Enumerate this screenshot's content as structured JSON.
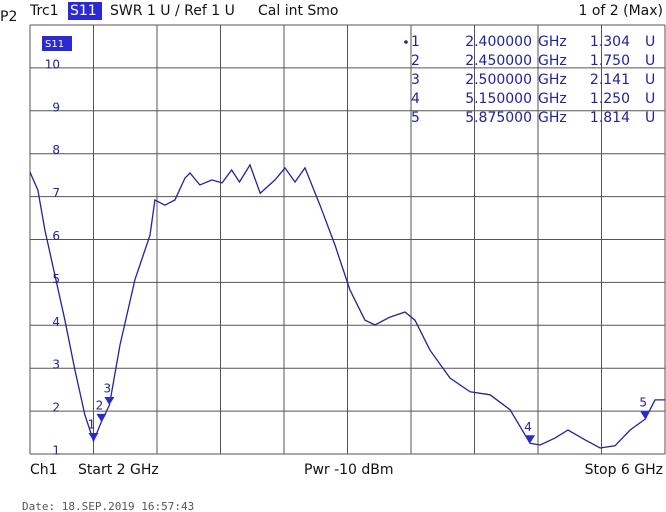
{
  "chart_data": {
    "type": "line",
    "header": {
      "port": "P2",
      "trace": "Trc1",
      "param": "S11",
      "format": "SWR  1 U /  Ref 1 U",
      "cal": "Cal int Smo",
      "page": "1 of 2 (Max)"
    },
    "footer": {
      "channel": "Ch1",
      "start": "Start  2 GHz",
      "power": "Pwr  -10 dBm",
      "stop": "Stop  6 GHz"
    },
    "date": "Date: 18.SEP.2019  16:57:43",
    "x": [
      2.0,
      2.05,
      2.094,
      2.157,
      2.22,
      2.283,
      2.346,
      2.4,
      2.45,
      2.5,
      2.567,
      2.661,
      2.756,
      2.787,
      2.85,
      2.913,
      2.976,
      3.008,
      3.07,
      3.146,
      3.21,
      3.27,
      3.32,
      3.386,
      3.45,
      3.543,
      3.606,
      3.669,
      3.732,
      3.827,
      3.921,
      4.016,
      4.11,
      4.173,
      4.268,
      4.362,
      4.425,
      4.52,
      4.646,
      4.772,
      4.898,
      5.024,
      5.15,
      5.213,
      5.307,
      5.389,
      5.496,
      5.591,
      5.685,
      5.78,
      5.875,
      5.937,
      6.0
    ],
    "series": [
      {
        "name": "S11",
        "color": "#23239a",
        "values": [
          7.57,
          7.15,
          6.22,
          5.17,
          4.12,
          2.96,
          1.91,
          1.304,
          1.75,
          2.141,
          3.54,
          5.06,
          6.1,
          6.92,
          6.8,
          6.92,
          7.43,
          7.55,
          7.27,
          7.39,
          7.32,
          7.62,
          7.34,
          7.74,
          7.08,
          7.39,
          7.67,
          7.34,
          7.67,
          6.8,
          5.87,
          4.82,
          4.12,
          4.01,
          4.19,
          4.31,
          4.12,
          3.42,
          2.77,
          2.45,
          2.38,
          2.03,
          1.25,
          1.21,
          1.37,
          1.56,
          1.33,
          1.14,
          1.19,
          1.56,
          1.814,
          2.26,
          2.26
        ]
      }
    ],
    "xlim": [
      2,
      6
    ],
    "ylim": [
      1,
      11
    ],
    "yticks": [
      1,
      2,
      3,
      4,
      5,
      6,
      7,
      8,
      9,
      10
    ],
    "grid": true,
    "markers": {
      "names": [
        "1",
        "2",
        "3",
        "4",
        "5"
      ],
      "x": [
        2.4,
        2.45,
        2.5,
        5.15,
        5.875
      ],
      "x_labels": [
        "2.400000",
        "2.450000",
        "2.500000",
        "5.150000",
        "5.875000"
      ],
      "values": [
        1.304,
        1.75,
        2.141,
        1.25,
        1.814
      ],
      "value_labels": [
        "1.304",
        "1.750",
        "2.141",
        "1.250",
        "1.814"
      ],
      "x_unit": "GHz",
      "unit": "U"
    }
  }
}
